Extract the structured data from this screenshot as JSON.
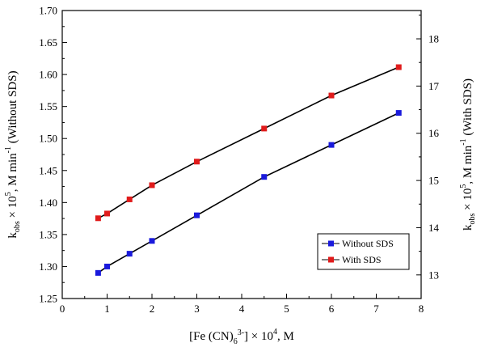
{
  "chart_data": {
    "type": "line",
    "x": [
      0.8,
      1.0,
      1.5,
      2.0,
      3.0,
      4.5,
      6.0,
      7.5
    ],
    "series": [
      {
        "name": "Without SDS",
        "axis": "left",
        "color": "#1a1adc",
        "values": [
          1.29,
          1.3,
          1.32,
          1.34,
          1.38,
          1.44,
          1.49,
          1.54
        ]
      },
      {
        "name": "With SDS",
        "axis": "right",
        "color": "#e01b1b",
        "values": [
          14.2,
          14.3,
          14.6,
          14.9,
          15.4,
          16.1,
          16.8,
          17.4
        ]
      }
    ],
    "xlim": [
      0,
      8
    ],
    "ylim": [
      1.25,
      1.7
    ],
    "y2lim": [
      12.5,
      18.6
    ],
    "x_ticks": [
      "0",
      "1",
      "2",
      "3",
      "4",
      "5",
      "6",
      "7",
      "8"
    ],
    "y_ticks": [
      "1.25",
      "1.30",
      "1.35",
      "1.40",
      "1.45",
      "1.50",
      "1.55",
      "1.60",
      "1.65",
      "1.70"
    ],
    "y2_ticks": [
      "13",
      "14",
      "15",
      "16",
      "17",
      "18"
    ],
    "xlabel": {
      "pre": "[Fe (CN)",
      "sub": "6",
      "sup": "3-",
      "post": "] × 10",
      "exp": "4",
      "tail": ", M"
    },
    "ylabel": {
      "pre": "k",
      "sub": "obs",
      "mid": " × 10",
      "exp": "5",
      "unit": ", M min",
      "unit_exp": "-1",
      "tail": " (Without SDS)"
    },
    "y2label": {
      "pre": "k",
      "sub": "obs",
      "mid": " × 10",
      "exp": "5",
      "unit": ", M min",
      "unit_exp": "-1",
      "tail": " (With SDS)"
    },
    "legend_position": "bottom-right",
    "grid": false,
    "line_color": "#000000"
  }
}
